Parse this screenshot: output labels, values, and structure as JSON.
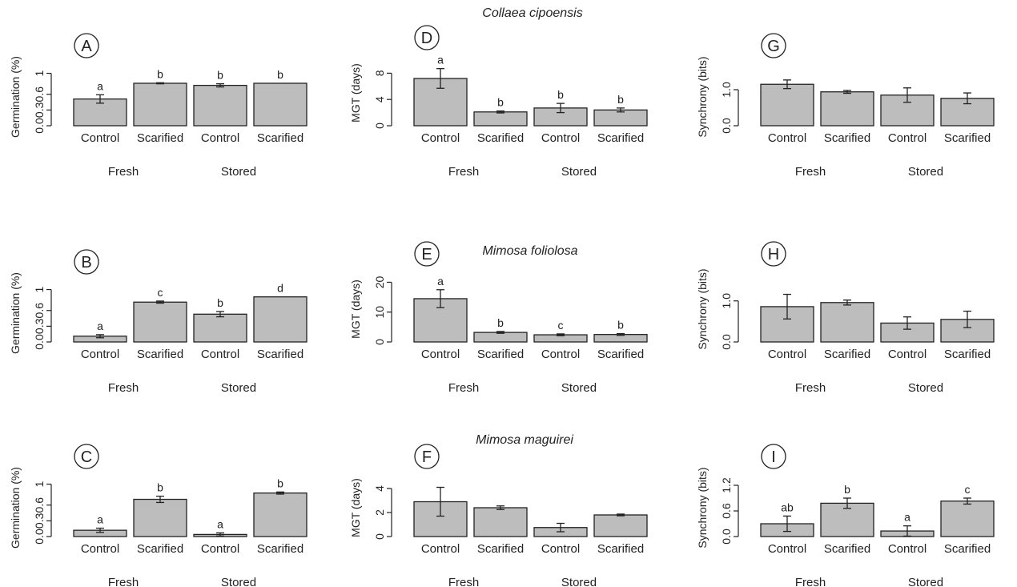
{
  "species": [
    "Collaea cipoensis",
    "Mimosa foliolosa",
    "Mimosa maguirei"
  ],
  "chart_data": [
    {
      "panel": "A",
      "type": "bar",
      "ylabel": "Germination (%)",
      "yticks": [
        "0.0",
        "0.3",
        "0.6",
        "1"
      ],
      "ylim": [
        0,
        1.1
      ],
      "categories": [
        "Control",
        "Scarified",
        "Control",
        "Scarified"
      ],
      "groups": [
        "Fresh",
        "Stored"
      ],
      "values": [
        0.51,
        0.81,
        0.77,
        0.81
      ],
      "errors": [
        0.08,
        0.01,
        0.03,
        0
      ],
      "letters": [
        "a",
        "b",
        "b",
        "b"
      ]
    },
    {
      "panel": "B",
      "type": "bar",
      "ylabel": "Germination (%)",
      "yticks": [
        "0.0",
        "0.3",
        "0.6",
        "1"
      ],
      "ylim": [
        0,
        1.1
      ],
      "categories": [
        "Control",
        "Scarified",
        "Control",
        "Scarified"
      ],
      "groups": [
        "Fresh",
        "Stored"
      ],
      "values": [
        0.11,
        0.76,
        0.53,
        0.86
      ],
      "errors": [
        0.03,
        0.02,
        0.05,
        0
      ],
      "letters": [
        "a",
        "c",
        "b",
        "d"
      ]
    },
    {
      "panel": "C",
      "type": "bar",
      "ylabel": "Germination (%)",
      "yticks": [
        "0.0",
        "0.3",
        "0.6",
        "1"
      ],
      "ylim": [
        0,
        1.1
      ],
      "categories": [
        "Control",
        "Scarified",
        "Control",
        "Scarified"
      ],
      "groups": [
        "Fresh",
        "Stored"
      ],
      "values": [
        0.12,
        0.71,
        0.04,
        0.83
      ],
      "errors": [
        0.04,
        0.06,
        0.03,
        0.02
      ],
      "letters": [
        "a",
        "b",
        "a",
        "b"
      ]
    },
    {
      "panel": "D",
      "type": "bar",
      "ylabel": "MGT (days)",
      "yticks": [
        "0",
        "4",
        "8"
      ],
      "ylim": [
        0,
        10
      ],
      "categories": [
        "Control",
        "Scarified",
        "Control",
        "Scarified"
      ],
      "groups": [
        "Fresh",
        "Stored"
      ],
      "values": [
        7.2,
        2.1,
        2.7,
        2.4
      ],
      "errors": [
        1.5,
        0.15,
        0.7,
        0.3
      ],
      "letters": [
        "a",
        "b",
        "b",
        "b"
      ]
    },
    {
      "panel": "E",
      "type": "bar",
      "ylabel": "MGT (days)",
      "yticks": [
        "0",
        "10",
        "20"
      ],
      "ylim": [
        0,
        22
      ],
      "categories": [
        "Control",
        "Scarified",
        "Control",
        "Scarified"
      ],
      "groups": [
        "Fresh",
        "Stored"
      ],
      "values": [
        14.5,
        3.2,
        2.4,
        2.5
      ],
      "errors": [
        3.0,
        0.3,
        0.3,
        0.3
      ],
      "letters": [
        "a",
        "b",
        "c",
        "b"
      ]
    },
    {
      "panel": "F",
      "type": "bar",
      "ylabel": "MGT (days)",
      "yticks": [
        "0",
        "2",
        "4"
      ],
      "ylim": [
        0,
        4.8
      ],
      "categories": [
        "Control",
        "Scarified",
        "Control",
        "Scarified"
      ],
      "groups": [
        "Fresh",
        "Stored"
      ],
      "values": [
        2.9,
        2.4,
        0.75,
        1.8
      ],
      "errors": [
        1.2,
        0.15,
        0.35,
        0.07
      ],
      "letters": [
        "",
        "",
        "",
        ""
      ]
    },
    {
      "panel": "G",
      "type": "bar",
      "ylabel": "Synchrony (bits)",
      "yticks": [
        "0.0",
        "1.0"
      ],
      "ylim": [
        0,
        1.6
      ],
      "categories": [
        "Control",
        "Scarified",
        "Control",
        "Scarified"
      ],
      "groups": [
        "Fresh",
        "Stored"
      ],
      "values": [
        1.15,
        0.94,
        0.85,
        0.76
      ],
      "errors": [
        0.12,
        0.04,
        0.2,
        0.15
      ],
      "letters": [
        "",
        "",
        "",
        ""
      ]
    },
    {
      "panel": "H",
      "type": "bar",
      "ylabel": "Synchrony (bits)",
      "yticks": [
        "0.0",
        "1.0"
      ],
      "ylim": [
        0,
        1.6
      ],
      "categories": [
        "Control",
        "Scarified",
        "Control",
        "Scarified"
      ],
      "groups": [
        "Fresh",
        "Stored"
      ],
      "values": [
        0.86,
        0.96,
        0.46,
        0.55
      ],
      "errors": [
        0.3,
        0.06,
        0.15,
        0.2
      ],
      "letters": [
        "",
        "",
        "",
        ""
      ]
    },
    {
      "panel": "I",
      "type": "bar",
      "ylabel": "Synchrony (bits)",
      "yticks": [
        "0.0",
        "0.6",
        "1.2"
      ],
      "ylim": [
        0,
        1.35
      ],
      "categories": [
        "Control",
        "Scarified",
        "Control",
        "Scarified"
      ],
      "groups": [
        "Fresh",
        "Stored"
      ],
      "values": [
        0.3,
        0.78,
        0.13,
        0.83
      ],
      "errors": [
        0.18,
        0.12,
        0.12,
        0.07
      ],
      "letters": [
        "ab",
        "b",
        "a",
        "c"
      ]
    }
  ]
}
